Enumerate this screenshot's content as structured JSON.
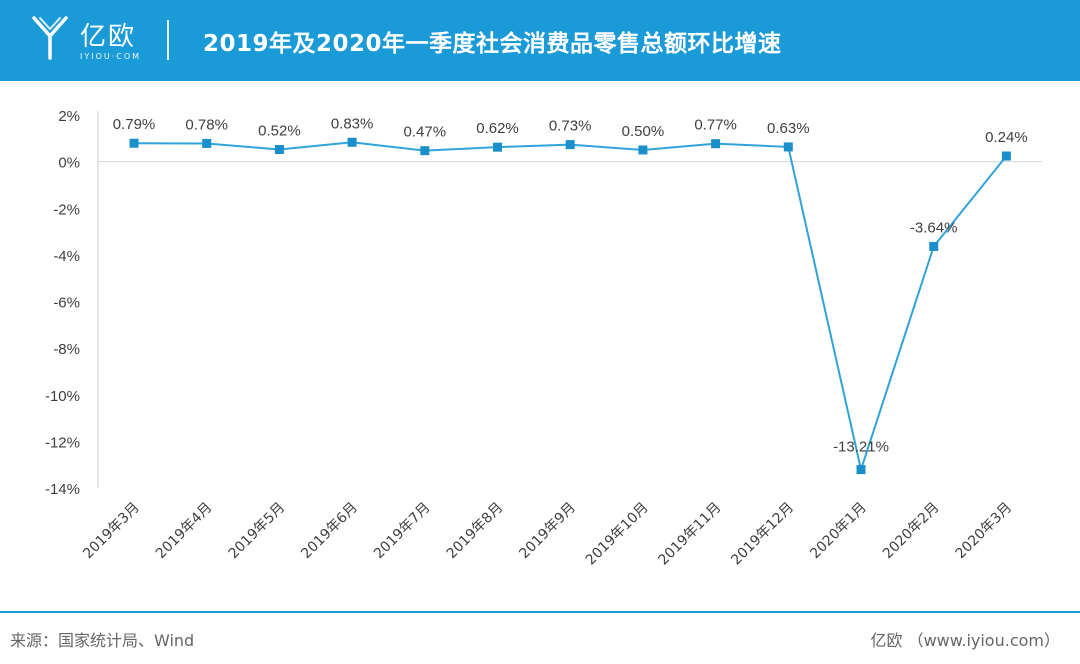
{
  "header": {
    "logo_text": "亿欧",
    "logo_sub": "IYIOU·COM",
    "title": "2019年及2020年一季度社会消费品零售总额环比增速"
  },
  "footer": {
    "source": "来源：国家统计局、Wind",
    "credit": "亿欧 （www.iyiou.com）"
  },
  "colors": {
    "brand": "#1a9ad6",
    "line": "#30a3d9",
    "marker": "#1a8fcb"
  },
  "chart_data": {
    "type": "line",
    "title": "2019年及2020年一季度社会消费品零售总额环比增速",
    "categories": [
      "2019年3月",
      "2019年4月",
      "2019年5月",
      "2019年6月",
      "2019年7月",
      "2019年8月",
      "2019年9月",
      "2019年10月",
      "2019年11月",
      "2019年12月",
      "2020年1月",
      "2020年2月",
      "2020年3月"
    ],
    "values": [
      0.79,
      0.78,
      0.52,
      0.83,
      0.47,
      0.62,
      0.73,
      0.5,
      0.77,
      0.63,
      -13.21,
      -3.64,
      0.24
    ],
    "value_labels": [
      "0.79%",
      "0.78%",
      "0.52%",
      "0.83%",
      "0.47%",
      "0.62%",
      "0.73%",
      "0.50%",
      "0.77%",
      "0.63%",
      "-13.21%",
      "-3.64%",
      "0.24%"
    ],
    "y_ticks": [
      "2%",
      "0%",
      "-2%",
      "-4%",
      "-6%",
      "-8%",
      "-10%",
      "-12%",
      "-14%"
    ],
    "y_tick_values": [
      2,
      0,
      -2,
      -4,
      -6,
      -8,
      -10,
      -12,
      -14
    ],
    "ylim": [
      -14,
      2
    ],
    "grid": false,
    "legend": "none"
  }
}
